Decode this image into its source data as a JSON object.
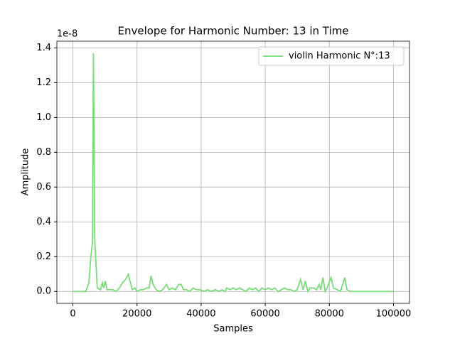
{
  "chart_data": {
    "type": "line",
    "title": "Envelope for Harmonic Number: 13 in Time",
    "xlabel": "Samples",
    "ylabel": "Amplitude",
    "y_offset_text": "1e-8",
    "x": [
      0,
      2000,
      4000,
      5000,
      5600,
      6100,
      6400,
      6800,
      7600,
      8600,
      9200,
      9600,
      10100,
      10600,
      11500,
      12500,
      13500,
      14500,
      15500,
      16500,
      17300,
      17800,
      18500,
      19300,
      20000,
      21000,
      22000,
      23000,
      23800,
      24400,
      25000,
      26000,
      27000,
      28000,
      29200,
      30000,
      31000,
      32000,
      33000,
      33800,
      34500,
      35500,
      36500,
      37500,
      38500,
      39500,
      41000,
      42000,
      43000,
      44500,
      45500,
      46500,
      47500,
      48000,
      49000,
      50000,
      51000,
      52000,
      53000,
      54000,
      55000,
      56000,
      57000,
      58000,
      59000,
      60000,
      61000,
      62000,
      63000,
      64000,
      65000,
      66000,
      67000,
      68000,
      69000,
      70000,
      71000,
      71800,
      72500,
      73300,
      74000,
      75000,
      76000,
      76800,
      77300,
      78000,
      78700,
      79500,
      80500,
      81300,
      82500,
      83500,
      84800,
      85500,
      86500,
      88000,
      100000
    ],
    "series": [
      {
        "name": "violin Harmonic N°:13",
        "color": "#77dd77",
        "values": [
          0,
          0,
          0,
          0.05,
          0.2,
          0.28,
          1.37,
          0.3,
          0.02,
          0.01,
          0.05,
          0.02,
          0.06,
          0.01,
          0.01,
          0.01,
          0,
          0.02,
          0.05,
          0.07,
          0.1,
          0.06,
          0.01,
          0.02,
          0,
          0.01,
          0.01,
          0.02,
          0.02,
          0.09,
          0.04,
          0.01,
          0,
          0.01,
          0.04,
          0.01,
          0.02,
          0.01,
          0.04,
          0.04,
          0.01,
          0.01,
          0,
          0.02,
          0.01,
          0.01,
          0,
          0.01,
          0,
          0.01,
          0,
          0.01,
          0,
          0.02,
          0.01,
          0.02,
          0.01,
          0.02,
          0.01,
          0,
          0.02,
          0.01,
          0.02,
          0,
          0.02,
          0.01,
          0.02,
          0.01,
          0.02,
          0,
          0.01,
          0.02,
          0.01,
          0.01,
          0,
          0.01,
          0.07,
          0.01,
          0.06,
          0,
          0.02,
          0.02,
          0.01,
          0.04,
          0.01,
          0.08,
          0,
          0.03,
          0.08,
          0.02,
          0.01,
          0,
          0.08,
          0.01,
          0,
          0,
          0
        ]
      }
    ],
    "xlim": [
      -5000,
      105000
    ],
    "xticks": [
      0,
      20000,
      40000,
      60000,
      80000,
      100000
    ],
    "ylim": [
      -0.0685,
      1.4385
    ],
    "yticks": [
      {
        "value": 0,
        "label": "0.0"
      },
      {
        "value": 0.2,
        "label": "0.2"
      },
      {
        "value": 0.4,
        "label": "0.4"
      },
      {
        "value": 0.6,
        "label": "0.6"
      },
      {
        "value": 0.8,
        "label": "0.8"
      },
      {
        "value": 1.0,
        "label": "1.0"
      },
      {
        "value": 1.2,
        "label": "1.2"
      },
      {
        "value": 1.4,
        "label": "1.4"
      }
    ],
    "grid": true,
    "legend": "upper right"
  }
}
